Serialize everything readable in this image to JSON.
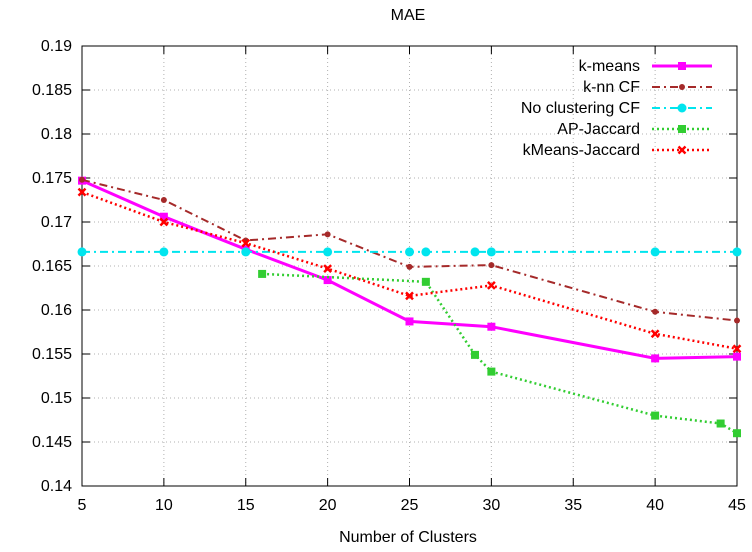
{
  "chart_data": {
    "type": "line",
    "title": "MAE",
    "xlabel": "Number of Clusters",
    "ylabel": "",
    "xlim": [
      5,
      45
    ],
    "ylim": [
      0.14,
      0.19
    ],
    "xticks": [
      5,
      10,
      15,
      20,
      25,
      30,
      35,
      40,
      45
    ],
    "yticks": [
      0.14,
      0.145,
      0.15,
      0.155,
      0.16,
      0.165,
      0.17,
      0.175,
      0.18,
      0.185,
      0.19
    ],
    "grid": true,
    "legend_position": "top-right",
    "series": [
      {
        "name": "k-means",
        "color": "#ff00ff",
        "dash": "solid",
        "marker": "square",
        "x": [
          5,
          10,
          15,
          20,
          25,
          30,
          40,
          45
        ],
        "y": [
          0.1747,
          0.1706,
          0.1669,
          0.1634,
          0.1587,
          0.1581,
          0.1545,
          0.1547
        ]
      },
      {
        "name": "k-nn CF",
        "color": "#a52a2a",
        "dash": "dashdot",
        "marker": "dot",
        "x": [
          5,
          10,
          15,
          20,
          25,
          30,
          40,
          45
        ],
        "y": [
          0.1748,
          0.1725,
          0.1679,
          0.1686,
          0.1649,
          0.1651,
          0.1598,
          0.1588
        ]
      },
      {
        "name": "No clustering CF",
        "color": "#00e5ee",
        "dash": "dashdot",
        "marker": "circle",
        "x": [
          5,
          10,
          15,
          20,
          25,
          26,
          29,
          30,
          40,
          45
        ],
        "y": [
          0.1666,
          0.1666,
          0.1666,
          0.1666,
          0.1666,
          0.1666,
          0.1666,
          0.1666,
          0.1666,
          0.1666
        ]
      },
      {
        "name": "AP-Jaccard",
        "color": "#32cd32",
        "dash": "dotted",
        "marker": "square",
        "x": [
          16,
          26,
          29,
          30,
          40,
          44,
          45
        ],
        "y": [
          0.1641,
          0.1632,
          0.1549,
          0.153,
          0.148,
          0.1471,
          0.146
        ]
      },
      {
        "name": "kMeans-Jaccard",
        "color": "#ff0000",
        "dash": "dotted",
        "marker": "x",
        "x": [
          5,
          10,
          15,
          20,
          25,
          30,
          40,
          45
        ],
        "y": [
          0.1734,
          0.17,
          0.1676,
          0.1647,
          0.1616,
          0.1628,
          0.1573,
          0.1556
        ]
      }
    ]
  }
}
